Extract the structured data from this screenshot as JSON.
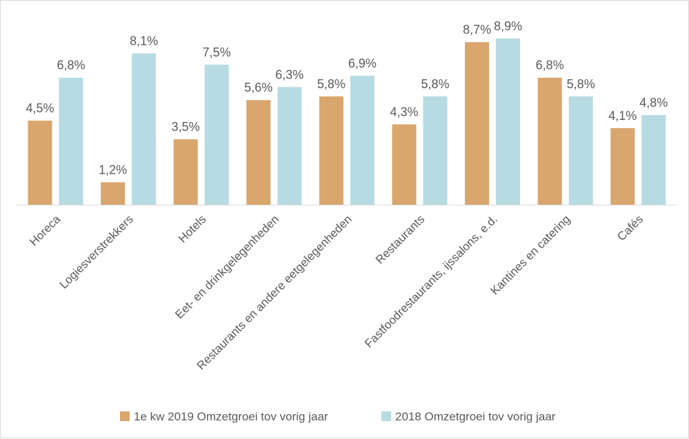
{
  "chart_data": {
    "type": "bar",
    "categories": [
      "Horeca",
      "Logiesverstrekkers",
      "Hotels",
      "Eet- en drinkgelegenheden",
      "Restaurants en andere eetgelegenheden",
      "Restaurants",
      "Fastfoodrestaurants, ijssalons, e.d.",
      "Kantines en catering",
      "Cafés"
    ],
    "series": [
      {
        "name": "1e kw 2019 Omzetgroei tov vorig jaar",
        "color": "#d9a66e",
        "values": [
          4.5,
          1.2,
          3.5,
          5.6,
          5.8,
          4.3,
          8.7,
          6.8,
          4.1
        ],
        "labels": [
          "4,5%",
          "1,2%",
          "3,5%",
          "5,6%",
          "5,8%",
          "4,3%",
          "8,7%",
          "6,8%",
          "4,1%"
        ]
      },
      {
        "name": "2018 Omzetgroei tov vorig jaar",
        "color": "#b7dbe3",
        "values": [
          6.8,
          8.1,
          7.5,
          6.3,
          6.9,
          5.8,
          8.9,
          5.8,
          4.8
        ],
        "labels": [
          "6,8%",
          "8,1%",
          "7,5%",
          "6,3%",
          "6,9%",
          "5,8%",
          "8,9%",
          "5,8%",
          "4,8%"
        ]
      }
    ],
    "title": "",
    "xlabel": "",
    "ylabel": "",
    "ylim": [
      0,
      9
    ],
    "unit": "%",
    "grid": false,
    "value_axis_visible": false,
    "legend_position": "bottom"
  }
}
